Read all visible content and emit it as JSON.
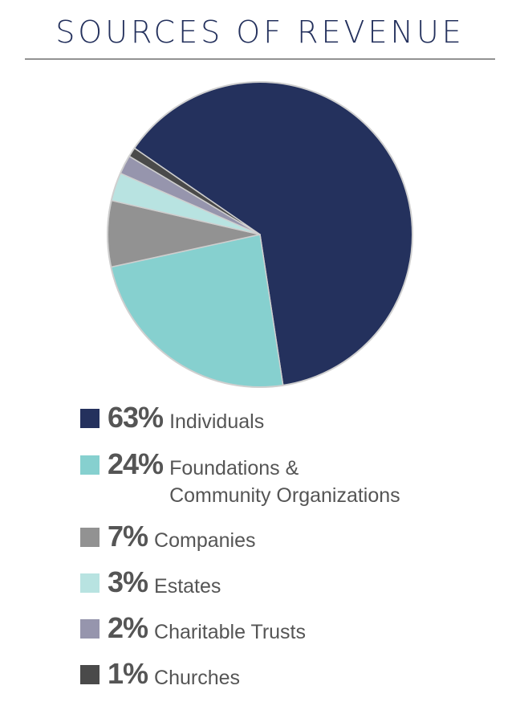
{
  "chart_data": {
    "type": "pie",
    "title": "SOURCES OF REVENUE",
    "slices": [
      {
        "value": 63,
        "percent_label": "63%",
        "label": "Individuals",
        "color": "#24315d"
      },
      {
        "value": 24,
        "percent_label": "24%",
        "label": "Foundations & Community Organizations",
        "label_lines": [
          "Foundations &",
          "Community Organizations"
        ],
        "color": "#86d0cf"
      },
      {
        "value": 7,
        "percent_label": "7%",
        "label": "Companies",
        "color": "#929292"
      },
      {
        "value": 3,
        "percent_label": "3%",
        "label": "Estates",
        "color": "#b8e3e1"
      },
      {
        "value": 2,
        "percent_label": "2%",
        "label": "Charitable Trusts",
        "color": "#9695ad"
      },
      {
        "value": 1,
        "percent_label": "1%",
        "label": "Churches",
        "color": "#4a4a4a"
      }
    ],
    "legend_position": "bottom"
  }
}
